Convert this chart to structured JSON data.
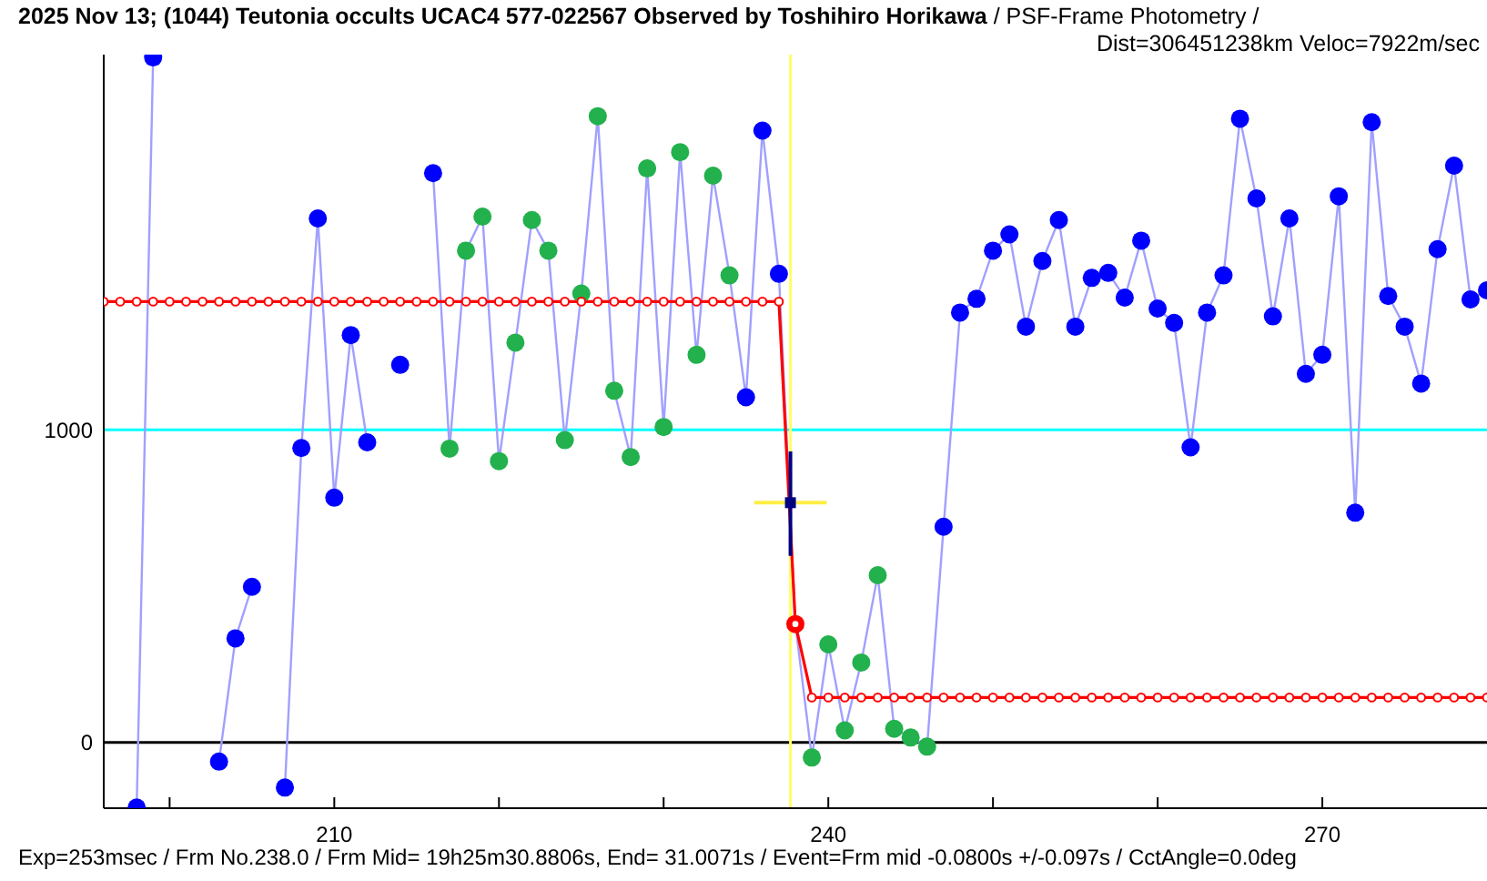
{
  "chart_data": {
    "type": "line",
    "title": "2025 Nov 13; (1044) Teutonia occults UCAC4 577-022567 Observed by Toshihiro Horikawa",
    "subtitle": "/ PSF-Frame Photometry /\nDist=306451238km Veloc=7922m/sec",
    "annotations": [
      "Exp=253msec / Frm No.238.0 / Frm Mid= 19h25m30.8806s,  End= 31.0071s / Event=Frm mid -0.0800s +/-0.097s / CctAngle=0.0deg"
    ],
    "x": [
      196,
      197,
      198,
      199,
      200,
      201,
      202,
      203,
      204,
      205,
      206,
      207,
      208,
      209,
      210,
      211,
      212,
      213,
      214,
      215,
      216,
      217,
      218,
      219,
      220,
      221,
      222,
      223,
      224,
      225,
      226,
      227,
      228,
      229,
      230,
      231,
      232,
      233,
      234,
      235,
      236,
      237,
      238,
      239,
      240,
      241,
      242,
      243,
      244,
      245,
      246,
      247,
      248,
      249,
      250,
      251,
      252,
      253,
      254,
      255,
      256,
      257,
      258,
      259,
      260,
      261,
      262,
      263,
      264,
      265,
      266,
      267,
      268,
      269,
      270,
      271,
      272,
      273,
      274,
      275,
      276,
      277,
      278,
      279,
      280
    ],
    "series": [
      {
        "color": "#a0a0ff",
        "marker": "circle",
        "values": [
          null,
          null,
          -208,
          2191,
          null,
          null,
          null,
          -61,
          333,
          498,
          null,
          -144,
          942,
          1676,
          783,
          1303,
          960,
          null,
          1208,
          null,
          1821,
          940,
          1573,
          1682,
          900,
          1279,
          1671,
          1573,
          967,
          1436,
          2003,
          1125,
          913,
          1836,
          1009,
          1888,
          1240,
          1813,
          1494,
          1104,
          1957,
          1499,
          379,
          -48,
          314,
          39,
          256,
          535,
          44,
          16,
          -13,
          690,
          1375,
          1419,
          1573,
          1625,
          1330,
          1540,
          1671,
          1330,
          1486,
          1502,
          1423,
          1605,
          1388,
          1342,
          944,
          1375,
          1494,
          1995,
          1740,
          1363,
          1676,
          1179,
          1240,
          1747,
          735,
          1984,
          1428,
          1330,
          1148,
          1578,
          1845,
          1417,
          1446
        ],
        "colors": [
          "#0000ff",
          "#0000ff",
          "#0000ff",
          "#0000ff",
          "#0000ff",
          "#0000ff",
          "#0000ff",
          "#0000ff",
          "#0000ff",
          "#0000ff",
          "#0000ff",
          "#0000ff",
          "#0000ff",
          "#0000ff",
          "#0000ff",
          "#0000ff",
          "#0000ff",
          "#0000ff",
          "#0000ff",
          "#0000ff",
          "#0000ff",
          "#22b14c",
          "#22b14c",
          "#22b14c",
          "#22b14c",
          "#22b14c",
          "#22b14c",
          "#22b14c",
          "#22b14c",
          "#22b14c",
          "#22b14c",
          "#22b14c",
          "#22b14c",
          "#22b14c",
          "#22b14c",
          "#22b14c",
          "#22b14c",
          "#22b14c",
          "#22b14c",
          "#0000ff",
          "#0000ff",
          "#0000ff",
          "#ff0000",
          "#22b14c",
          "#22b14c",
          "#22b14c",
          "#22b14c",
          "#22b14c",
          "#22b14c",
          "#22b14c",
          "#22b14c",
          "#0000ff",
          "#0000ff",
          "#0000ff",
          "#0000ff",
          "#0000ff",
          "#0000ff",
          "#0000ff",
          "#0000ff",
          "#0000ff",
          "#0000ff",
          "#0000ff",
          "#0000ff",
          "#0000ff",
          "#0000ff",
          "#0000ff",
          "#0000ff",
          "#0000ff",
          "#0000ff",
          "#0000ff",
          "#0000ff",
          "#0000ff",
          "#0000ff",
          "#0000ff",
          "#0000ff",
          "#0000ff",
          "#0000ff",
          "#0000ff",
          "#0000ff",
          "#0000ff",
          "#0000ff",
          "#0000ff",
          "#0000ff",
          "#0000ff",
          "#0000ff"
        ]
      },
      {
        "color": "#ff0000",
        "marker": "circle",
        "values": [
          1410,
          1410,
          1410,
          1410,
          1410,
          1410,
          1410,
          1410,
          1410,
          1410,
          1410,
          1410,
          1410,
          1410,
          1410,
          1410,
          1410,
          1410,
          1410,
          1410,
          1410,
          1410,
          1410,
          1410,
          1410,
          1410,
          1410,
          1410,
          1410,
          1410,
          1410,
          1410,
          1410,
          1410,
          1410,
          1410,
          1410,
          1410,
          1410,
          1410,
          1410,
          1410,
          379,
          144,
          144,
          144,
          144,
          144,
          144,
          144,
          144,
          144,
          144,
          144,
          144,
          144,
          144,
          144,
          144,
          144,
          144,
          144,
          144,
          144,
          144,
          144,
          144,
          144,
          144,
          144,
          144,
          144,
          144,
          144,
          144,
          144,
          144,
          144,
          144,
          144,
          144,
          144,
          144,
          144,
          144
        ]
      },
      {
        "type": "scatter",
        "color": "#000080",
        "x": [
          237.7
        ],
        "values": [
          767
        ],
        "errors": [
          [
            597,
            931
          ]
        ],
        "xerrors": [
          [
            235.5,
            239.9
          ]
        ]
      }
    ],
    "xlim": [
      196,
      280
    ],
    "xticks": [
      {
        "value": 200,
        "label": null
      },
      210,
      {
        "value": 220,
        "label": null
      },
      {
        "value": 230,
        "label": null
      },
      240,
      {
        "value": 250,
        "label": null
      },
      {
        "value": 260,
        "label": null
      },
      270
    ],
    "ylim": [
      -210,
      2200
    ],
    "yticks": [
      0,
      1000
    ],
    "ref_lines": [
      {
        "axis": "y",
        "value": 1000,
        "color": "#00ffff"
      },
      {
        "axis": "y",
        "value": 0,
        "color": "#000000"
      },
      {
        "axis": "x",
        "value": 237.7,
        "color": "#ffff66"
      }
    ],
    "tick_labels": true
  }
}
